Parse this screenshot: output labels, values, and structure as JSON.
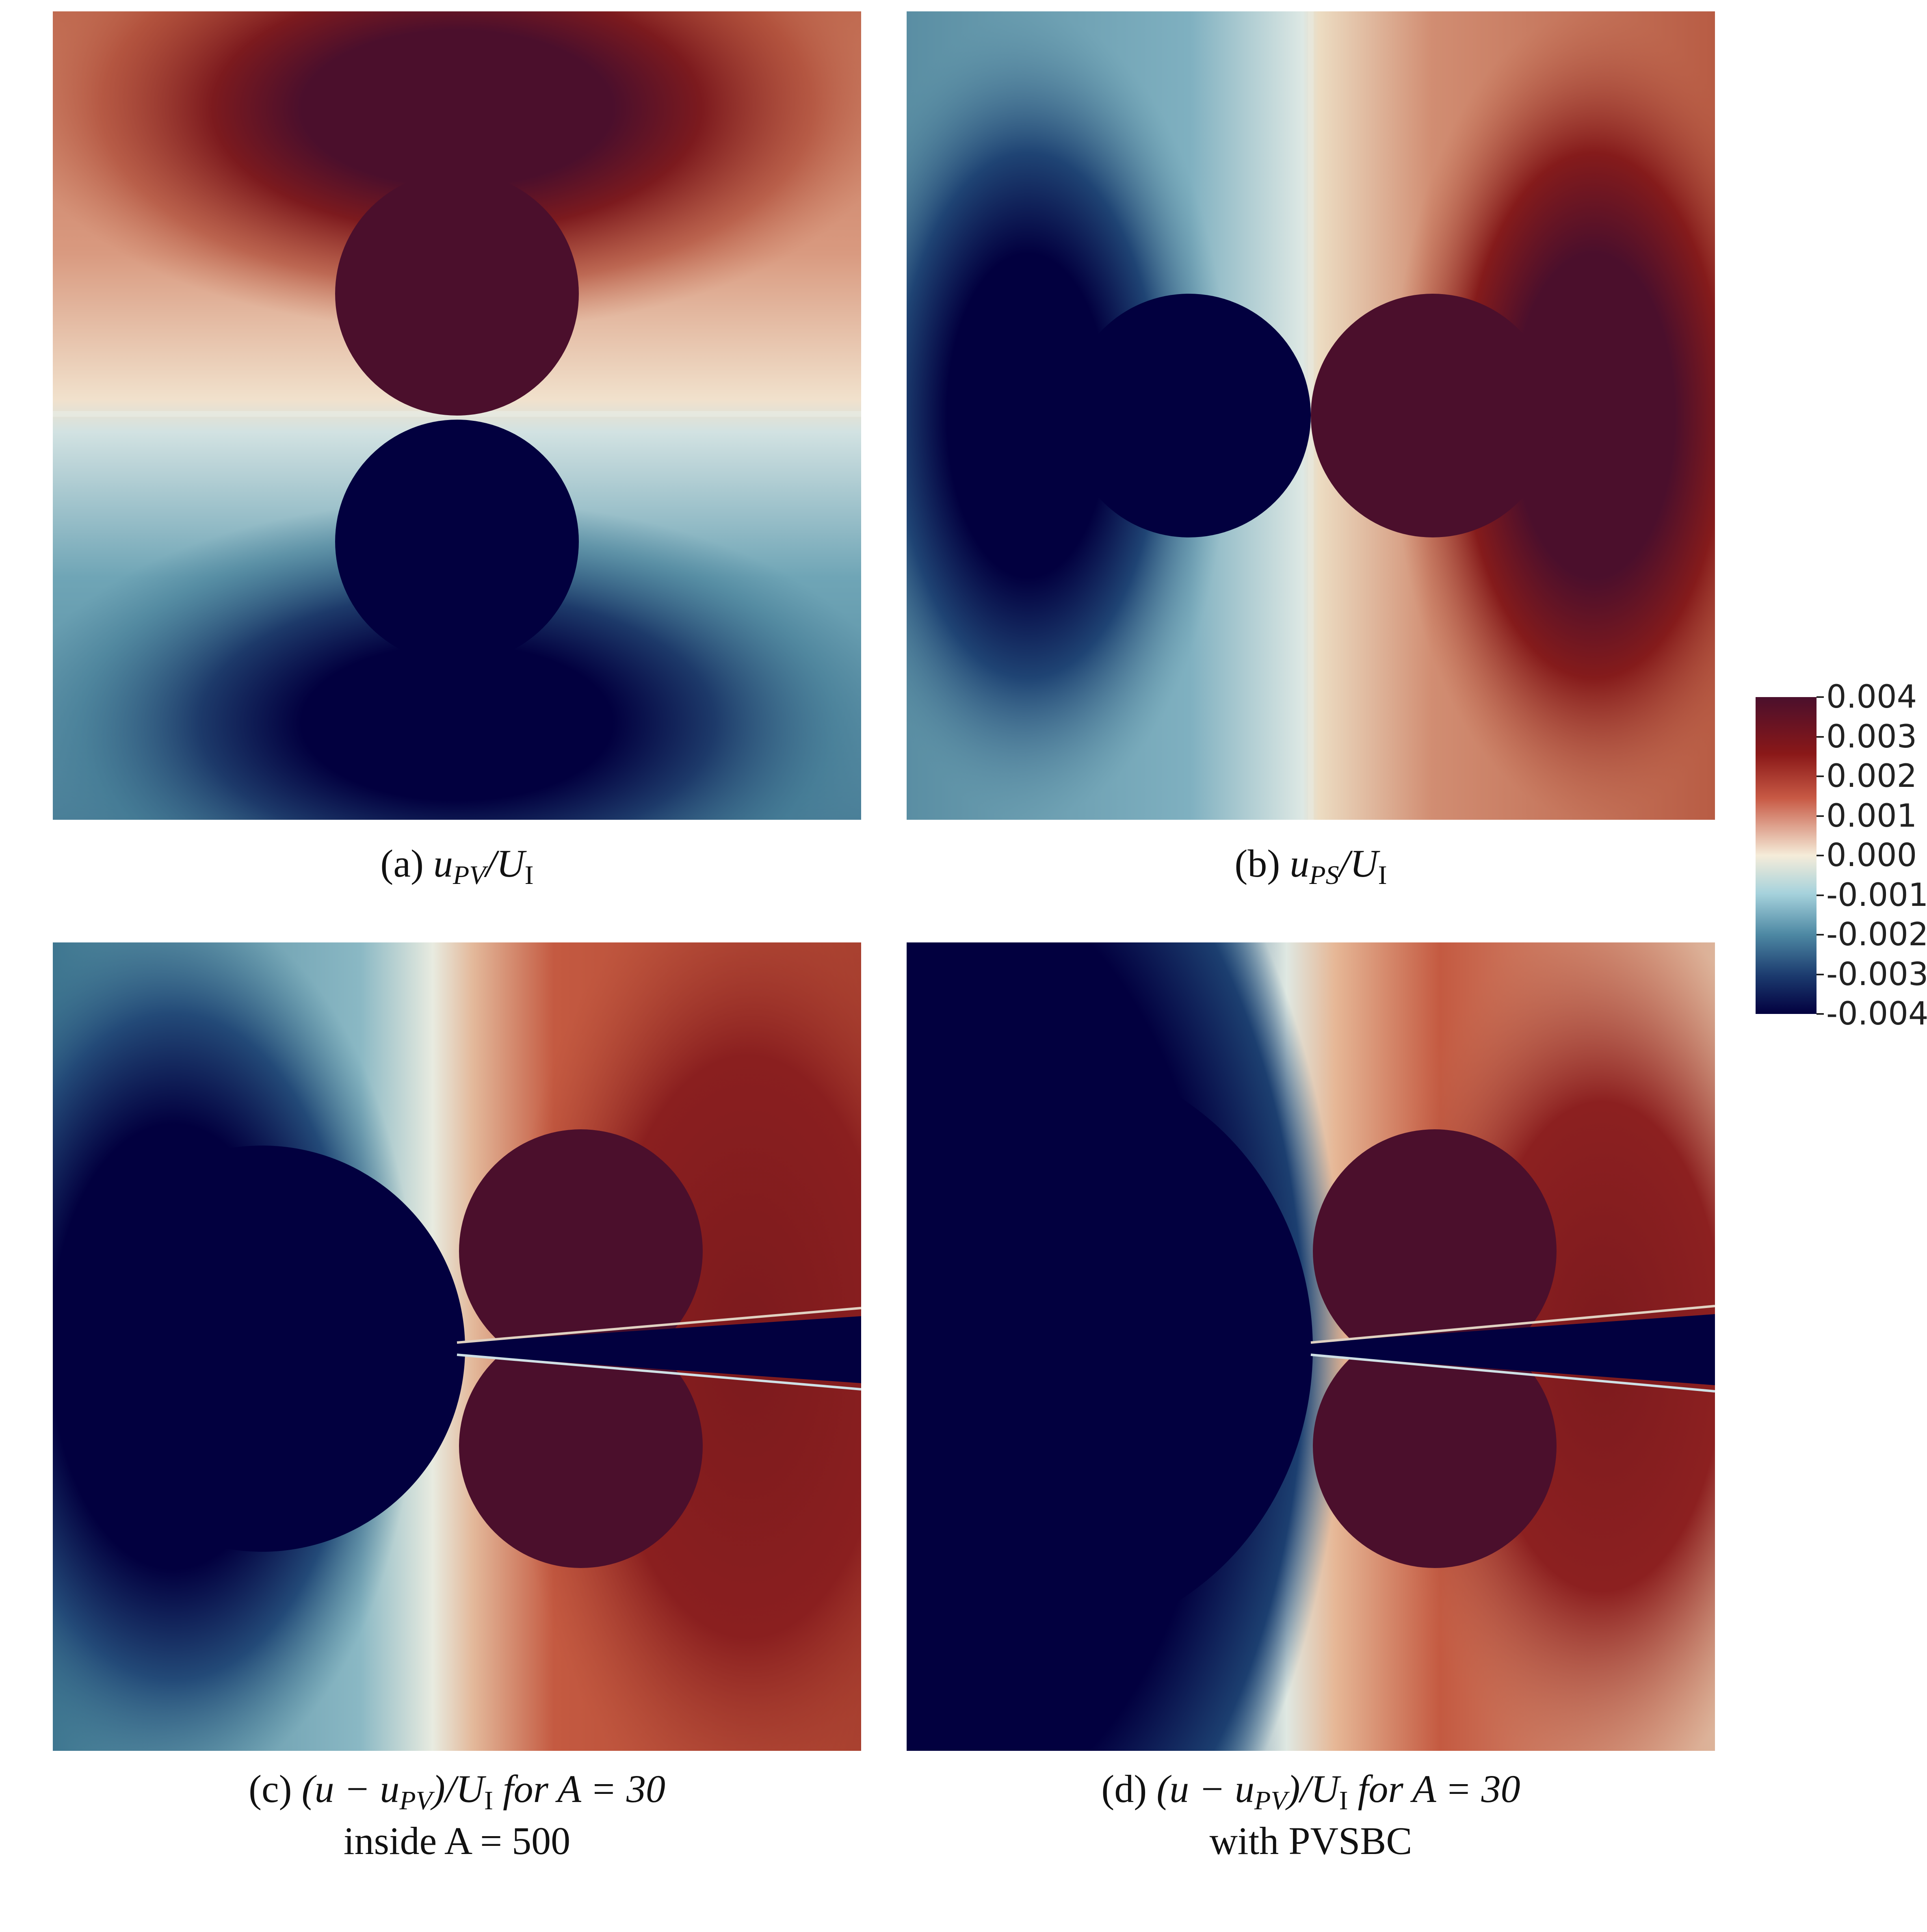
{
  "panels": [
    {
      "letter": "(a)",
      "expr_prefix": "",
      "var": "u",
      "sub": "PV",
      "expr_suffix": "/U",
      "unit_sub": "I",
      "line2": ""
    },
    {
      "letter": "(b)",
      "expr_prefix": "",
      "var": "u",
      "sub": "PS",
      "expr_suffix": "/U",
      "unit_sub": "I",
      "line2": ""
    },
    {
      "letter": "(c)",
      "expr_prefix": "(u − u",
      "var": "",
      "sub": "PV",
      "expr_suffix": ")/U",
      "unit_sub": "I",
      "tail": " for A = 30",
      "line2": "inside A = 500"
    },
    {
      "letter": "(d)",
      "expr_prefix": "(u − u",
      "var": "",
      "sub": "PV",
      "expr_suffix": ")/U",
      "unit_sub": "I",
      "tail": " for A = 30",
      "line2": "with PVSBC"
    }
  ],
  "colorbar": {
    "ticks": [
      "0.004",
      "0.003",
      "0.002",
      "0.001",
      "0.000",
      "-0.001",
      "-0.002",
      "-0.003",
      "-0.004"
    ],
    "colors": {
      "max": "#4b0f2c",
      "high": "#8a1818",
      "mid_high": "#c85a45",
      "zero": "#f5ecd9",
      "mid_low": "#6fa9bd",
      "low": "#2e5f86",
      "min": "#02003f"
    }
  }
}
